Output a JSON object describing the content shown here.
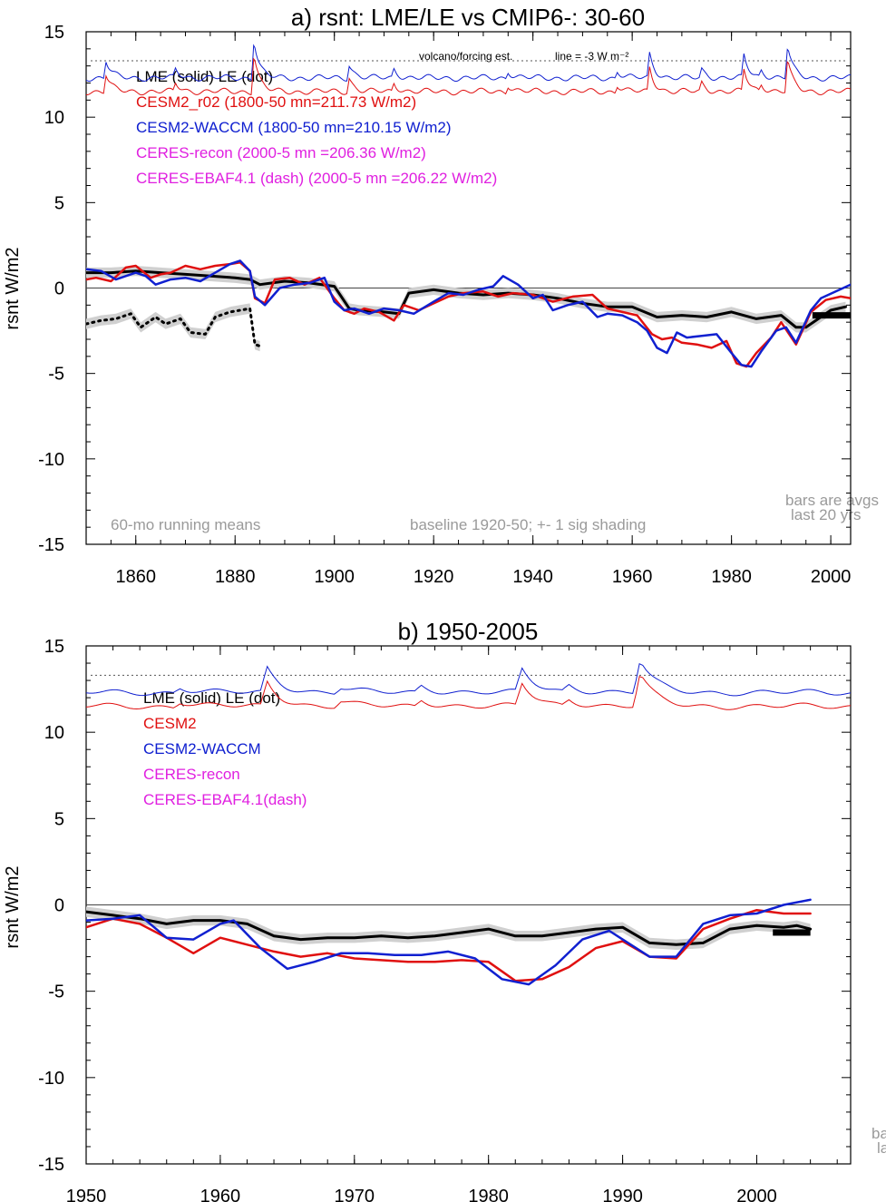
{
  "colors": {
    "lme": "#000000",
    "cesm2": "#e01010",
    "waccm": "#1020d0",
    "ceres": "#e020e0",
    "note": "#9a9a9a",
    "shade": "#d0d0d0"
  },
  "chart_data": [
    {
      "type": "line",
      "title": "a) rsnt: LME/LE vs CMIP6-: 30-60",
      "ylabel": "rsnt W/m2",
      "xlim": [
        1850,
        2004
      ],
      "ylim": [
        -15,
        15
      ],
      "xticks": [
        1860,
        1880,
        1900,
        1920,
        1940,
        1960,
        1980,
        2000
      ],
      "yticks": [
        15,
        10,
        5,
        0,
        -5,
        -10,
        -15
      ],
      "ref_dotted_y": 13.3,
      "ref_dotted_label": "volcano/forcing est.",
      "ref_dotted_label2": "line = -3 W m⁻²",
      "legend": [
        "LME (solid)   LE (dot)",
        "CESM2_r02 (1800-50 mn=211.73 W/m2)",
        "CESM2-WACCM (1800-50 mn=210.15 W/m2)",
        "CERES-recon (2000-5 mn =206.36 W/m2)",
        "CERES-EBAF4.1 (dash) (2000-5 mn =206.22 W/m2)"
      ],
      "annotations": [
        "60-mo running means",
        "baseline 1920-50; +- 1 sig shading",
        "bars are avgs",
        "last 20 yrs"
      ],
      "series": [
        {
          "name": "LME (solid)",
          "color": "#000000",
          "width": 3,
          "shade": true,
          "x": [
            1850,
            1855,
            1860,
            1865,
            1870,
            1875,
            1880,
            1883,
            1885,
            1890,
            1895,
            1900,
            1903,
            1905,
            1910,
            1913,
            1915,
            1920,
            1925,
            1930,
            1935,
            1940,
            1945,
            1950,
            1955,
            1960,
            1965,
            1970,
            1975,
            1980,
            1985,
            1990,
            1993,
            1995,
            2000,
            2003
          ],
          "y": [
            0.9,
            0.9,
            1.0,
            0.9,
            0.8,
            0.7,
            0.6,
            0.5,
            0.2,
            0.4,
            0.3,
            0.1,
            -1.2,
            -1.3,
            -1.4,
            -1.5,
            -0.3,
            -0.1,
            -0.3,
            -0.4,
            -0.3,
            -0.4,
            -0.6,
            -0.9,
            -1.1,
            -1.1,
            -1.7,
            -1.6,
            -1.7,
            -1.4,
            -1.8,
            -1.6,
            -2.3,
            -2.3,
            -1.3,
            -1.1
          ]
        },
        {
          "name": "LE (dot)",
          "color": "#000000",
          "width": 3,
          "dotted": true,
          "shade": true,
          "x": [
            1850,
            1853,
            1856,
            1859,
            1861,
            1864,
            1866,
            1869,
            1871,
            1874,
            1876,
            1879,
            1881,
            1883,
            1884,
            1885
          ],
          "y": [
            -2.1,
            -1.9,
            -1.8,
            -1.5,
            -2.3,
            -1.7,
            -2.1,
            -1.8,
            -2.6,
            -2.7,
            -1.7,
            -1.4,
            -1.3,
            -1.2,
            -3.3,
            -3.4
          ]
        },
        {
          "name": "CESM2_r02",
          "color": "#e01010",
          "width": 2.5,
          "x": [
            1850,
            1852,
            1855,
            1858,
            1860,
            1863,
            1865,
            1867,
            1870,
            1873,
            1876,
            1879,
            1881,
            1883,
            1884,
            1886,
            1888,
            1891,
            1894,
            1897,
            1900,
            1902,
            1904,
            1906,
            1909,
            1912,
            1914,
            1917,
            1920,
            1923,
            1926,
            1930,
            1933,
            1936,
            1940,
            1944,
            1948,
            1952,
            1955,
            1958,
            1961,
            1964,
            1966,
            1968,
            1970,
            1973,
            1976,
            1979,
            1981,
            1983,
            1985,
            1988,
            1990,
            1993,
            1996,
            1999,
            2002,
            2004
          ],
          "y": [
            0.5,
            0.6,
            0.4,
            1.2,
            1.3,
            0.6,
            0.8,
            0.9,
            1.3,
            1.1,
            1.3,
            1.4,
            1.5,
            1.0,
            -0.6,
            -0.9,
            0.5,
            0.6,
            0.2,
            0.6,
            -0.6,
            -1.3,
            -1.5,
            -1.2,
            -1.4,
            -1.9,
            -1.0,
            -1.3,
            -0.9,
            -0.5,
            -0.3,
            -0.2,
            -0.5,
            -0.3,
            -0.4,
            -0.8,
            -0.5,
            -0.4,
            -1.2,
            -1.4,
            -1.6,
            -2.7,
            -3.0,
            -2.9,
            -3.2,
            -3.3,
            -3.5,
            -3.1,
            -4.4,
            -4.6,
            -3.8,
            -2.9,
            -2.0,
            -3.3,
            -1.4,
            -0.7,
            -0.5,
            -0.6
          ]
        },
        {
          "name": "CESM2-WACCM",
          "color": "#1020d0",
          "width": 2.5,
          "x": [
            1850,
            1853,
            1856,
            1860,
            1862,
            1864,
            1867,
            1870,
            1873,
            1876,
            1879,
            1881,
            1883,
            1884,
            1886,
            1889,
            1892,
            1895,
            1898,
            1900,
            1902,
            1904,
            1907,
            1910,
            1913,
            1916,
            1920,
            1923,
            1926,
            1929,
            1932,
            1934,
            1937,
            1940,
            1942,
            1944,
            1947,
            1950,
            1953,
            1955,
            1958,
            1961,
            1963,
            1965,
            1967,
            1969,
            1971,
            1974,
            1977,
            1980,
            1982,
            1984,
            1986,
            1989,
            1991,
            1993,
            1996,
            1998,
            2001,
            2004
          ],
          "y": [
            1.1,
            1.0,
            0.5,
            0.9,
            0.7,
            0.2,
            0.5,
            0.6,
            0.4,
            0.9,
            1.4,
            1.6,
            1.0,
            -0.5,
            -1.0,
            0.0,
            0.2,
            0.3,
            0.6,
            -0.8,
            -1.3,
            -1.2,
            -1.5,
            -1.2,
            -1.3,
            -1.5,
            -0.8,
            -0.3,
            -0.4,
            -0.1,
            0.1,
            0.7,
            0.2,
            -0.6,
            -0.4,
            -1.3,
            -1.0,
            -0.8,
            -1.7,
            -1.5,
            -1.6,
            -2.0,
            -2.5,
            -3.5,
            -3.8,
            -2.6,
            -2.9,
            -2.8,
            -2.7,
            -3.8,
            -4.5,
            -4.6,
            -3.7,
            -2.5,
            -2.3,
            -3.2,
            -1.3,
            -0.6,
            -0.2,
            0.2
          ]
        }
      ],
      "bars": [
        {
          "x0": 1996.3,
          "x1": 2004,
          "y": -1.6,
          "color": "#000000"
        }
      ]
    },
    {
      "type": "line",
      "title": "b) 1950-2005",
      "ylabel": "rsnt W/m2",
      "xlim": [
        1950,
        2007
      ],
      "ylim": [
        -15,
        15
      ],
      "xticks": [
        1950,
        1960,
        1970,
        1980,
        1990,
        2000
      ],
      "yticks": [
        15,
        10,
        5,
        0,
        -5,
        -10,
        -15
      ],
      "ref_dotted_y": 13.3,
      "legend": [
        "LME (solid)     LE (dot)",
        "CESM2",
        "CESM2-WACCM",
        "CERES-recon",
        "CERES-EBAF4.1(dash)"
      ],
      "annotations": [
        "ba",
        "la"
      ],
      "series": [
        {
          "name": "LME (solid)",
          "color": "#000000",
          "width": 3,
          "shade": true,
          "x": [
            1950,
            1952,
            1954,
            1956,
            1958,
            1960,
            1962,
            1964,
            1966,
            1968,
            1970,
            1972,
            1974,
            1976,
            1978,
            1980,
            1982,
            1984,
            1986,
            1988,
            1990,
            1992,
            1994,
            1996,
            1998,
            2000,
            2002,
            2003,
            2004
          ],
          "y": [
            -0.4,
            -0.6,
            -0.8,
            -1.1,
            -0.9,
            -0.9,
            -1.1,
            -1.8,
            -2.0,
            -1.9,
            -1.9,
            -1.8,
            -1.9,
            -1.8,
            -1.6,
            -1.4,
            -1.8,
            -1.8,
            -1.6,
            -1.4,
            -1.3,
            -2.2,
            -2.3,
            -2.2,
            -1.4,
            -1.2,
            -1.3,
            -1.2,
            -1.4
          ]
        },
        {
          "name": "CESM2",
          "color": "#e01010",
          "width": 2.5,
          "x": [
            1950,
            1952,
            1954,
            1956,
            1958,
            1960,
            1962,
            1964,
            1966,
            1968,
            1970,
            1972,
            1974,
            1976,
            1978,
            1980,
            1982,
            1984,
            1986,
            1988,
            1990,
            1992,
            1994,
            1996,
            1998,
            2000,
            2002,
            2004
          ],
          "y": [
            -1.3,
            -0.8,
            -1.1,
            -1.9,
            -2.8,
            -1.9,
            -2.3,
            -2.7,
            -3.0,
            -2.8,
            -3.1,
            -3.2,
            -3.3,
            -3.3,
            -3.2,
            -3.3,
            -4.4,
            -4.3,
            -3.6,
            -2.5,
            -2.1,
            -3.0,
            -3.1,
            -1.4,
            -0.8,
            -0.3,
            -0.5,
            -0.5
          ]
        },
        {
          "name": "CESM2-WACCM",
          "color": "#1020d0",
          "width": 2.5,
          "x": [
            1950,
            1952,
            1954,
            1956,
            1958,
            1960,
            1961,
            1963,
            1965,
            1967,
            1969,
            1971,
            1973,
            1975,
            1977,
            1979,
            1981,
            1983,
            1985,
            1987,
            1989,
            1990,
            1992,
            1994,
            1996,
            1998,
            2000,
            2002,
            2004
          ],
          "y": [
            -0.9,
            -0.8,
            -0.6,
            -1.9,
            -2.0,
            -1.1,
            -0.9,
            -2.5,
            -3.7,
            -3.3,
            -2.8,
            -2.8,
            -2.9,
            -2.9,
            -2.7,
            -3.1,
            -4.3,
            -4.6,
            -3.5,
            -2.0,
            -1.5,
            -2.0,
            -3.0,
            -3.0,
            -1.1,
            -0.6,
            -0.5,
            0.0,
            0.3
          ]
        }
      ],
      "bars": [
        {
          "x0": 2001.2,
          "x1": 2004,
          "y": -1.6,
          "color": "#000000"
        }
      ]
    }
  ]
}
